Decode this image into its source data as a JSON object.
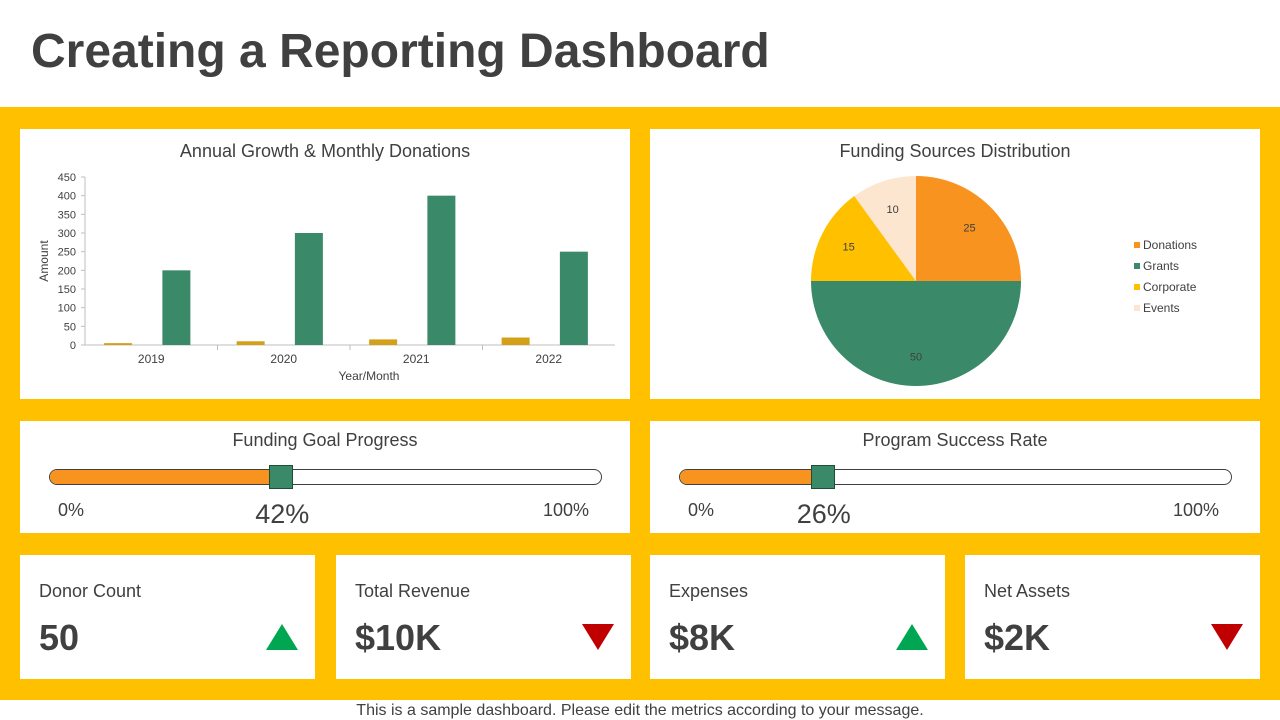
{
  "page": {
    "title": "Creating a Reporting Dashboard",
    "footer": "This is a sample dashboard. Please edit the metrics according to your message."
  },
  "colors": {
    "band": "#FFC000",
    "orange": "#F7931E",
    "green": "#3A8A6A",
    "gold": "#D4A017",
    "yellow": "#FFC000",
    "cream": "#FCE6CF",
    "up": "#00A651",
    "down": "#C00000"
  },
  "bar_panel": {
    "title": "Annual Growth & Monthly Donations",
    "xlabel": "Year/Month",
    "ylabel": "Amount"
  },
  "pie_panel": {
    "title": "Funding Sources Distribution"
  },
  "chart_data": [
    {
      "type": "bar",
      "title": "Annual Growth & Monthly Donations",
      "xlabel": "Year/Month",
      "ylabel": "Amount",
      "categories": [
        "2019",
        "2020",
        "2021",
        "2022"
      ],
      "ylim": [
        0,
        450
      ],
      "yticks": [
        0,
        50,
        100,
        150,
        200,
        250,
        300,
        350,
        400,
        450
      ],
      "grid": false,
      "series": [
        {
          "values": [
            5,
            10,
            15,
            20
          ],
          "color": "#D4A017"
        },
        {
          "values": [
            200,
            300,
            400,
            250
          ],
          "color": "#3A8A6A"
        }
      ]
    },
    {
      "type": "pie",
      "title": "Funding Sources Distribution",
      "legend": "right",
      "slices": [
        {
          "label": "Donations",
          "value": 25,
          "color": "#F7931E"
        },
        {
          "label": "Grants",
          "value": 50,
          "color": "#3A8A6A"
        },
        {
          "label": "Corporate",
          "value": 15,
          "color": "#FFC000"
        },
        {
          "label": "Events",
          "value": 10,
          "color": "#FCE6CF"
        }
      ]
    }
  ],
  "progress": [
    {
      "title": "Funding Goal Progress",
      "value": 42,
      "value_label": "42%",
      "min_label": "0%",
      "max_label": "100%"
    },
    {
      "title": "Program Success Rate",
      "value": 26,
      "value_label": "26%",
      "min_label": "0%",
      "max_label": "100%"
    }
  ],
  "kpis": [
    {
      "label": "Donor Count",
      "value": "50",
      "trend": "up",
      "arrow_icon": "triangle-up-icon"
    },
    {
      "label": "Total Revenue",
      "value": "$10K",
      "trend": "down",
      "arrow_icon": "triangle-down-icon"
    },
    {
      "label": "Expenses",
      "value": "$8K",
      "trend": "up",
      "arrow_icon": "triangle-up-icon"
    },
    {
      "label": "Net Assets",
      "value": "$2K",
      "trend": "down",
      "arrow_icon": "triangle-down-icon"
    }
  ]
}
